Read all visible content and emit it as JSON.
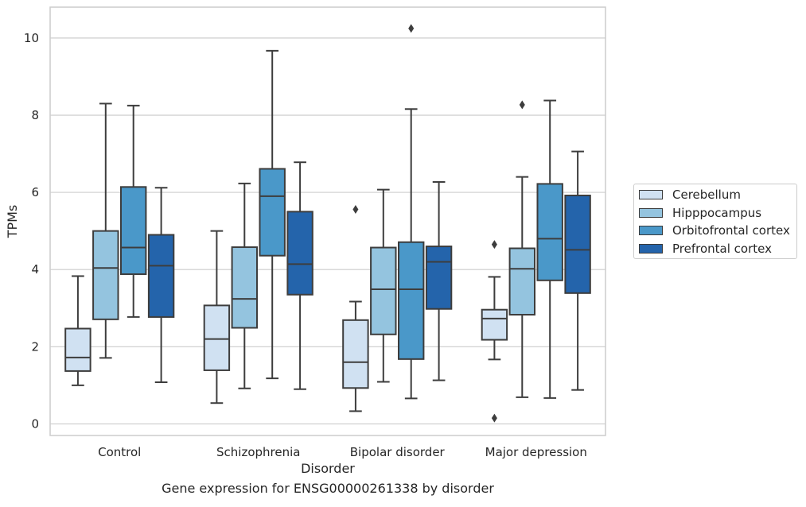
{
  "chart_data": {
    "type": "box",
    "title": "Gene expression for ENSG00000261338 by disorder",
    "xlabel": "Disorder",
    "ylabel": "TPMs",
    "ylim": [
      -0.3,
      10.8
    ],
    "yticks": [
      0,
      2,
      4,
      6,
      8,
      10
    ],
    "grid": true,
    "legend_position": "right",
    "categories": [
      "Control",
      "Schizophrenia",
      "Bipolar disorder",
      "Major depression"
    ],
    "series": [
      {
        "name": "Cerebellum",
        "color": "#d0e1f2",
        "boxes": [
          {
            "whislo": 1.0,
            "q1": 1.37,
            "med": 1.72,
            "q3": 2.47,
            "whishi": 3.83,
            "fliers": []
          },
          {
            "whislo": 0.54,
            "q1": 1.39,
            "med": 2.2,
            "q3": 3.07,
            "whishi": 5.0,
            "fliers": []
          },
          {
            "whislo": 0.33,
            "q1": 0.93,
            "med": 1.6,
            "q3": 2.69,
            "whishi": 3.17,
            "fliers": [
              5.56
            ]
          },
          {
            "whislo": 1.67,
            "q1": 2.18,
            "med": 2.73,
            "q3": 2.96,
            "whishi": 3.81,
            "fliers": [
              4.65,
              0.15
            ]
          }
        ]
      },
      {
        "name": "Hipppocampus",
        "color": "#94c4df",
        "boxes": [
          {
            "whislo": 1.71,
            "q1": 2.71,
            "med": 4.04,
            "q3": 5.0,
            "whishi": 8.3,
            "fliers": []
          },
          {
            "whislo": 0.92,
            "q1": 2.49,
            "med": 3.24,
            "q3": 4.58,
            "whishi": 6.23,
            "fliers": []
          },
          {
            "whislo": 1.09,
            "q1": 2.32,
            "med": 3.49,
            "q3": 4.57,
            "whishi": 6.07,
            "fliers": []
          },
          {
            "whislo": 0.69,
            "q1": 2.83,
            "med": 4.02,
            "q3": 4.55,
            "whishi": 6.4,
            "fliers": [
              8.27
            ]
          }
        ]
      },
      {
        "name": "Orbitofrontal cortex",
        "color": "#4a98c9",
        "boxes": [
          {
            "whislo": 2.77,
            "q1": 3.88,
            "med": 4.57,
            "q3": 6.14,
            "whishi": 8.25,
            "fliers": []
          },
          {
            "whislo": 1.18,
            "q1": 4.36,
            "med": 5.9,
            "q3": 6.61,
            "whishi": 9.67,
            "fliers": []
          },
          {
            "whislo": 0.66,
            "q1": 1.68,
            "med": 3.49,
            "q3": 4.71,
            "whishi": 8.16,
            "fliers": [
              10.25
            ]
          },
          {
            "whislo": 0.67,
            "q1": 3.72,
            "med": 4.8,
            "q3": 6.22,
            "whishi": 8.38,
            "fliers": []
          }
        ]
      },
      {
        "name": "Prefrontal cortex",
        "color": "#2464ab",
        "boxes": [
          {
            "whislo": 1.08,
            "q1": 2.77,
            "med": 4.1,
            "q3": 4.9,
            "whishi": 6.12,
            "fliers": []
          },
          {
            "whislo": 0.9,
            "q1": 3.35,
            "med": 4.14,
            "q3": 5.5,
            "whishi": 6.78,
            "fliers": []
          },
          {
            "whislo": 1.13,
            "q1": 2.98,
            "med": 4.2,
            "q3": 4.6,
            "whishi": 6.27,
            "fliers": []
          },
          {
            "whislo": 0.88,
            "q1": 3.39,
            "med": 4.51,
            "q3": 5.92,
            "whishi": 7.06,
            "fliers": []
          }
        ]
      }
    ]
  }
}
